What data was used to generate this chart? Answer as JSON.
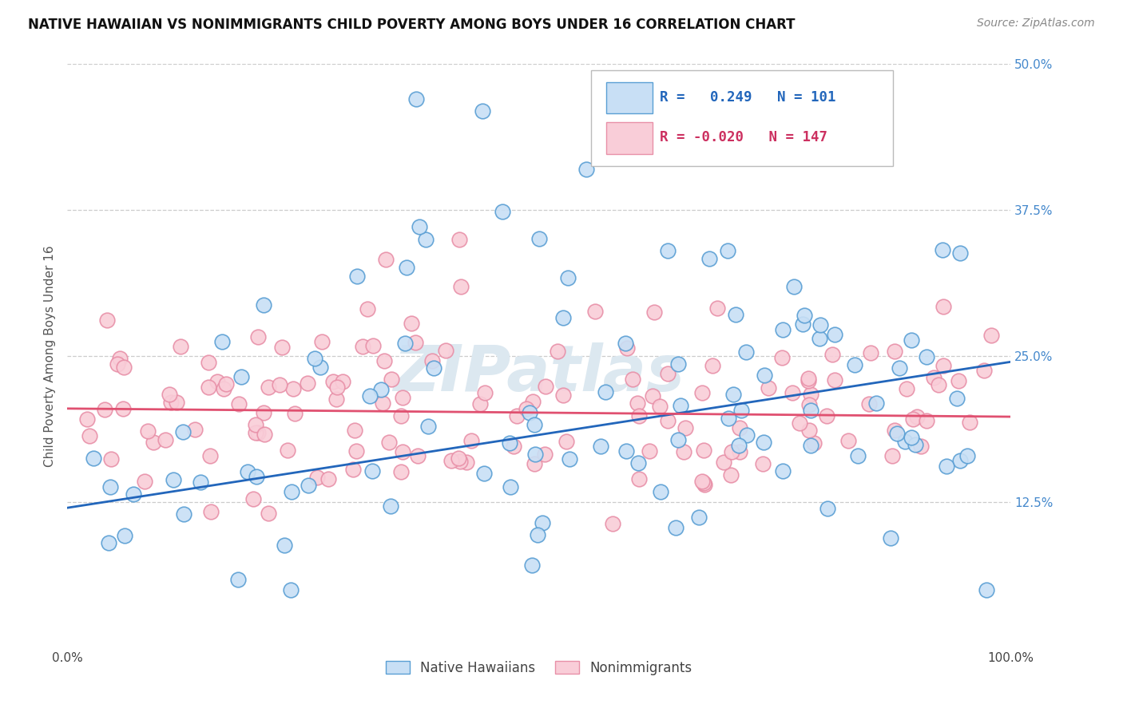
{
  "title": "NATIVE HAWAIIAN VS NONIMMIGRANTS CHILD POVERTY AMONG BOYS UNDER 16 CORRELATION CHART",
  "source": "Source: ZipAtlas.com",
  "ylabel": "Child Poverty Among Boys Under 16",
  "R_blue": 0.249,
  "N_blue": 101,
  "R_pink": -0.02,
  "N_pink": 147,
  "xlim": [
    0,
    100
  ],
  "ylim": [
    0,
    50
  ],
  "yticks": [
    0,
    12.5,
    25.0,
    37.5,
    50.0
  ],
  "blue_face_color": "#c8dff5",
  "blue_edge_color": "#5a9fd4",
  "blue_line_color": "#2266bb",
  "pink_face_color": "#f9cdd8",
  "pink_edge_color": "#e890a8",
  "pink_line_color": "#e05070",
  "watermark": "ZIPatlas",
  "watermark_color": "#dce8f0",
  "legend_label_blue": "R =   0.249   N = 101",
  "legend_label_pink": "R = -0.020   N = 147",
  "bottom_label_blue": "Native Hawaiians",
  "bottom_label_pink": "Nonimmigrants",
  "blue_trend_start_y": 12.0,
  "blue_trend_end_y": 24.5,
  "pink_trend_start_y": 20.5,
  "pink_trend_end_y": 19.8
}
